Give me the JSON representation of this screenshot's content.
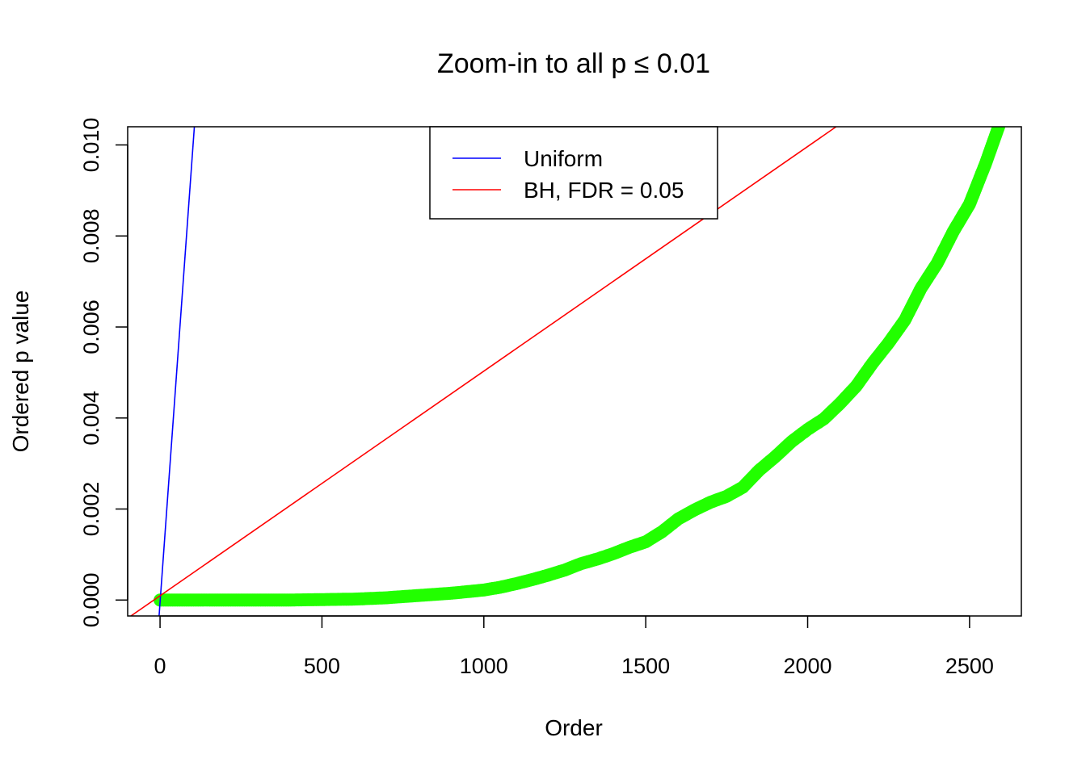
{
  "chart_data": {
    "type": "scatter",
    "title": "Zoom-in to all p ≤ 0.01",
    "xlabel": "Order",
    "ylabel": "Ordered p value",
    "xlim": [
      -100,
      2660
    ],
    "ylim": [
      -0.00035,
      0.0104
    ],
    "x_ticks": [
      {
        "value": 0,
        "label": "0"
      },
      {
        "value": 500,
        "label": "500"
      },
      {
        "value": 1000,
        "label": "1000"
      },
      {
        "value": 1500,
        "label": "1500"
      },
      {
        "value": 2000,
        "label": "2000"
      },
      {
        "value": 2500,
        "label": "2500"
      }
    ],
    "y_ticks": [
      {
        "value": 0.0,
        "label": "0.000"
      },
      {
        "value": 0.002,
        "label": "0.002"
      },
      {
        "value": 0.004,
        "label": "0.004"
      },
      {
        "value": 0.006,
        "label": "0.006"
      },
      {
        "value": 0.008,
        "label": "0.008"
      },
      {
        "value": 0.01,
        "label": "0.010"
      }
    ],
    "grid": false,
    "legend_position": "top-center",
    "series": [
      {
        "kind": "points",
        "color": "#22ff00",
        "x": [
          0,
          100,
          200,
          300,
          400,
          500,
          600,
          700,
          800,
          900,
          1000,
          1050,
          1100,
          1150,
          1200,
          1250,
          1300,
          1350,
          1400,
          1450,
          1500,
          1550,
          1600,
          1650,
          1700,
          1750,
          1800,
          1850,
          1900,
          1950,
          2000,
          2050,
          2100,
          2150,
          2200,
          2250,
          2300,
          2350,
          2400,
          2450,
          2500,
          2550,
          2590
        ],
        "y": [
          0.0,
          0.0,
          0.0,
          0.0,
          0.0,
          1e-05,
          2e-05,
          5e-05,
          0.0001,
          0.00015,
          0.00022,
          0.00028,
          0.00036,
          0.00045,
          0.00055,
          0.00066,
          0.0008,
          0.0009,
          0.00102,
          0.00116,
          0.00128,
          0.0015,
          0.00178,
          0.00198,
          0.00215,
          0.00228,
          0.00248,
          0.00285,
          0.00315,
          0.00348,
          0.00375,
          0.00398,
          0.00432,
          0.0047,
          0.0052,
          0.00565,
          0.00615,
          0.00685,
          0.0074,
          0.0081,
          0.0087,
          0.0096,
          0.0104
        ]
      },
      {
        "kind": "line",
        "name": "Uniform",
        "color": "#0000ff",
        "x": [
          -3,
          106
        ],
        "y": [
          -0.00035,
          0.0104
        ]
      },
      {
        "kind": "line",
        "name": "BH, FDR = 0.05",
        "color": "#ff0000",
        "x": [
          -90,
          2088
        ],
        "y": [
          -0.00035,
          0.0104
        ]
      }
    ]
  }
}
